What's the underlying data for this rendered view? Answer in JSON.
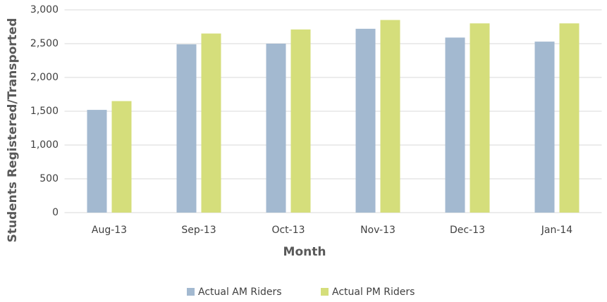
{
  "chart_data": {
    "type": "bar",
    "x_label": "Month",
    "y_label": "Students Registered/Transported",
    "categories": [
      "Aug-13",
      "Sep-13",
      "Oct-13",
      "Nov-13",
      "Dec-13",
      "Jan-14"
    ],
    "series": [
      {
        "name": "Actual AM Riders",
        "color": "#a3b9d0",
        "values": [
          1520,
          2490,
          2500,
          2720,
          2590,
          2530
        ]
      },
      {
        "name": "Actual PM Riders",
        "color": "#d5de7b",
        "values": [
          1650,
          2650,
          2710,
          2850,
          2800,
          2800
        ]
      }
    ],
    "ylim": [
      0,
      3000
    ],
    "yticks": [
      0,
      500,
      {
        "value": 1000,
        "label": "1,000"
      },
      {
        "value": 1500,
        "label": "1,500"
      },
      {
        "value": 2000,
        "label": "2,000"
      },
      {
        "value": 2500,
        "label": "2,500"
      },
      {
        "value": 3000,
        "label": "3,000"
      }
    ],
    "grid": true,
    "legend": "bottom"
  }
}
